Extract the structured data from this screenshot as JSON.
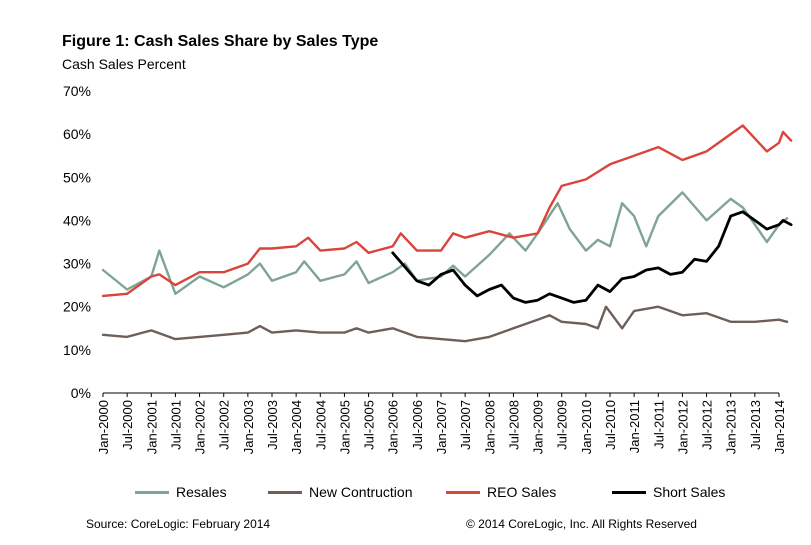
{
  "header": {
    "title": "Figure 1: Cash Sales Share by Sales Type",
    "subtitle": "Cash Sales Percent"
  },
  "footer": {
    "source": "Source: CoreLogic: February 2014",
    "copyright": "© 2014 CoreLogic, Inc. All Rights Reserved"
  },
  "chart_data": {
    "type": "line",
    "title": "Figure 1: Cash Sales Share by Sales Type",
    "ylabel": "Cash Sales Percent",
    "ylim": [
      0,
      70
    ],
    "y_ticks": [
      "0%",
      "10%",
      "20%",
      "30%",
      "40%",
      "50%",
      "60%",
      "70%"
    ],
    "y_tick_values": [
      0,
      10,
      20,
      30,
      40,
      50,
      60,
      70
    ],
    "x_range": [
      "Jan-2000",
      "Jan-2014"
    ],
    "x_ticks": [
      "Jan-2000",
      "Jul-2000",
      "Jan-2001",
      "Jul-2001",
      "Jan-2002",
      "Jul-2002",
      "Jan-2003",
      "Jul-2003",
      "Jan-2004",
      "Jul-2004",
      "Jan-2005",
      "Jul-2005",
      "Jan-2006",
      "Jul-2006",
      "Jan-2007",
      "Jul-2007",
      "Jan-2008",
      "Jul-2008",
      "Jan-2009",
      "Jul-2009",
      "Jan-2010",
      "Jul-2010",
      "Jan-2011",
      "Jul-2011",
      "Jan-2012",
      "Jul-2012",
      "Jan-2013",
      "Jul-2013",
      "Jan-2014"
    ],
    "grid": false,
    "legend": "bottom",
    "series": [
      {
        "name": "Resales",
        "color": "#7fa496",
        "points": [
          [
            "Jan-2000",
            28.5
          ],
          [
            "Jul-2000",
            24
          ],
          [
            "Jan-2001",
            27
          ],
          [
            "Mar-2001",
            33
          ],
          [
            "Jul-2001",
            23
          ],
          [
            "Jan-2002",
            27
          ],
          [
            "Jul-2002",
            24.5
          ],
          [
            "Jan-2003",
            27.5
          ],
          [
            "Apr-2003",
            30
          ],
          [
            "Jul-2003",
            26
          ],
          [
            "Jan-2004",
            28
          ],
          [
            "Mar-2004",
            30.5
          ],
          [
            "Jul-2004",
            26
          ],
          [
            "Jan-2005",
            27.5
          ],
          [
            "Apr-2005",
            30.5
          ],
          [
            "Jul-2005",
            25.5
          ],
          [
            "Jan-2006",
            28
          ],
          [
            "Apr-2006",
            30
          ],
          [
            "Jul-2006",
            26
          ],
          [
            "Jan-2007",
            27
          ],
          [
            "Apr-2007",
            29.5
          ],
          [
            "Jul-2007",
            27
          ],
          [
            "Jan-2008",
            32
          ],
          [
            "Jun-2008",
            37
          ],
          [
            "Oct-2008",
            33
          ],
          [
            "Jan-2009",
            37
          ],
          [
            "Jun-2009",
            44
          ],
          [
            "Sep-2009",
            38
          ],
          [
            "Jan-2010",
            33
          ],
          [
            "Apr-2010",
            35.5
          ],
          [
            "Jul-2010",
            34
          ],
          [
            "Oct-2010",
            44
          ],
          [
            "Jan-2011",
            41
          ],
          [
            "Apr-2011",
            34
          ],
          [
            "Jul-2011",
            41
          ],
          [
            "Jan-2012",
            46.5
          ],
          [
            "Jul-2012",
            40
          ],
          [
            "Jan-2013",
            45
          ],
          [
            "Apr-2013",
            43
          ],
          [
            "Jul-2013",
            39
          ],
          [
            "Oct-2013",
            35
          ],
          [
            "Jan-2014",
            39
          ],
          [
            "Mar-2014",
            40.5
          ]
        ]
      },
      {
        "name": "New Contruction",
        "color": "#6e6058",
        "points": [
          [
            "Jan-2000",
            13.5
          ],
          [
            "Jul-2000",
            13
          ],
          [
            "Jan-2001",
            14.5
          ],
          [
            "Jul-2001",
            12.5
          ],
          [
            "Jan-2002",
            13
          ],
          [
            "Jul-2002",
            13.5
          ],
          [
            "Jan-2003",
            14
          ],
          [
            "Apr-2003",
            15.5
          ],
          [
            "Jul-2003",
            14
          ],
          [
            "Jan-2004",
            14.5
          ],
          [
            "Jul-2004",
            14
          ],
          [
            "Jan-2005",
            14
          ],
          [
            "Apr-2005",
            15
          ],
          [
            "Jul-2005",
            14
          ],
          [
            "Jan-2006",
            15
          ],
          [
            "Jul-2006",
            13
          ],
          [
            "Jan-2007",
            12.5
          ],
          [
            "Jul-2007",
            12
          ],
          [
            "Jan-2008",
            13
          ],
          [
            "Jul-2008",
            15
          ],
          [
            "Jan-2009",
            17
          ],
          [
            "Apr-2009",
            18
          ],
          [
            "Jul-2009",
            16.5
          ],
          [
            "Jan-2010",
            16
          ],
          [
            "Apr-2010",
            15
          ],
          [
            "Jun-2010",
            20
          ],
          [
            "Oct-2010",
            15
          ],
          [
            "Jan-2011",
            19
          ],
          [
            "Jul-2011",
            20
          ],
          [
            "Jan-2012",
            18
          ],
          [
            "Jul-2012",
            18.5
          ],
          [
            "Jan-2013",
            16.5
          ],
          [
            "Jul-2013",
            16.5
          ],
          [
            "Jan-2014",
            17
          ],
          [
            "Mar-2014",
            16.5
          ]
        ]
      },
      {
        "name": "REO Sales",
        "color": "#d9453a",
        "points": [
          [
            "Jan-2000",
            22.5
          ],
          [
            "Jul-2000",
            23
          ],
          [
            "Jan-2001",
            27
          ],
          [
            "Mar-2001",
            27.5
          ],
          [
            "Jul-2001",
            25
          ],
          [
            "Jan-2002",
            28
          ],
          [
            "Jul-2002",
            28
          ],
          [
            "Jan-2003",
            30
          ],
          [
            "Apr-2003",
            33.5
          ],
          [
            "Jul-2003",
            33.5
          ],
          [
            "Jan-2004",
            34
          ],
          [
            "Apr-2004",
            36
          ],
          [
            "Jul-2004",
            33
          ],
          [
            "Jan-2005",
            33.5
          ],
          [
            "Apr-2005",
            35
          ],
          [
            "Jul-2005",
            32.5
          ],
          [
            "Jan-2006",
            34
          ],
          [
            "Mar-2006",
            37
          ],
          [
            "Jul-2006",
            33
          ],
          [
            "Jan-2007",
            33
          ],
          [
            "Apr-2007",
            37
          ],
          [
            "Jul-2007",
            36
          ],
          [
            "Jan-2008",
            37.5
          ],
          [
            "Jul-2008",
            36
          ],
          [
            "Jan-2009",
            37
          ],
          [
            "Apr-2009",
            43
          ],
          [
            "Jul-2009",
            48
          ],
          [
            "Jan-2010",
            49.5
          ],
          [
            "Jul-2010",
            53
          ],
          [
            "Jan-2011",
            55
          ],
          [
            "Jul-2011",
            57
          ],
          [
            "Jan-2012",
            54
          ],
          [
            "Jul-2012",
            56
          ],
          [
            "Jan-2013",
            60
          ],
          [
            "Apr-2013",
            62
          ],
          [
            "Oct-2013",
            56
          ],
          [
            "Jan-2014",
            58
          ],
          [
            "Feb-2014",
            60.5
          ],
          [
            "Apr-2014",
            58.5
          ]
        ]
      },
      {
        "name": "Short Sales",
        "color": "#000000",
        "points": [
          [
            "Jan-2006",
            32.5
          ],
          [
            "Jul-2006",
            26
          ],
          [
            "Oct-2006",
            25
          ],
          [
            "Jan-2007",
            27.5
          ],
          [
            "Apr-2007",
            28.5
          ],
          [
            "Jul-2007",
            25
          ],
          [
            "Oct-2007",
            22.5
          ],
          [
            "Jan-2008",
            24
          ],
          [
            "Apr-2008",
            25
          ],
          [
            "Jul-2008",
            22
          ],
          [
            "Oct-2008",
            21
          ],
          [
            "Jan-2009",
            21.5
          ],
          [
            "Apr-2009",
            23
          ],
          [
            "Jul-2009",
            22
          ],
          [
            "Oct-2009",
            21
          ],
          [
            "Jan-2010",
            21.5
          ],
          [
            "Apr-2010",
            25
          ],
          [
            "Jul-2010",
            23.5
          ],
          [
            "Oct-2010",
            26.5
          ],
          [
            "Jan-2011",
            27
          ],
          [
            "Apr-2011",
            28.5
          ],
          [
            "Jul-2011",
            29
          ],
          [
            "Oct-2011",
            27.5
          ],
          [
            "Jan-2012",
            28
          ],
          [
            "Apr-2012",
            31
          ],
          [
            "Jul-2012",
            30.5
          ],
          [
            "Oct-2012",
            34
          ],
          [
            "Jan-2013",
            41
          ],
          [
            "Apr-2013",
            42
          ],
          [
            "Jul-2013",
            40
          ],
          [
            "Oct-2013",
            38
          ],
          [
            "Jan-2014",
            39
          ],
          [
            "Feb-2014",
            40
          ],
          [
            "Apr-2014",
            39
          ]
        ]
      }
    ]
  }
}
